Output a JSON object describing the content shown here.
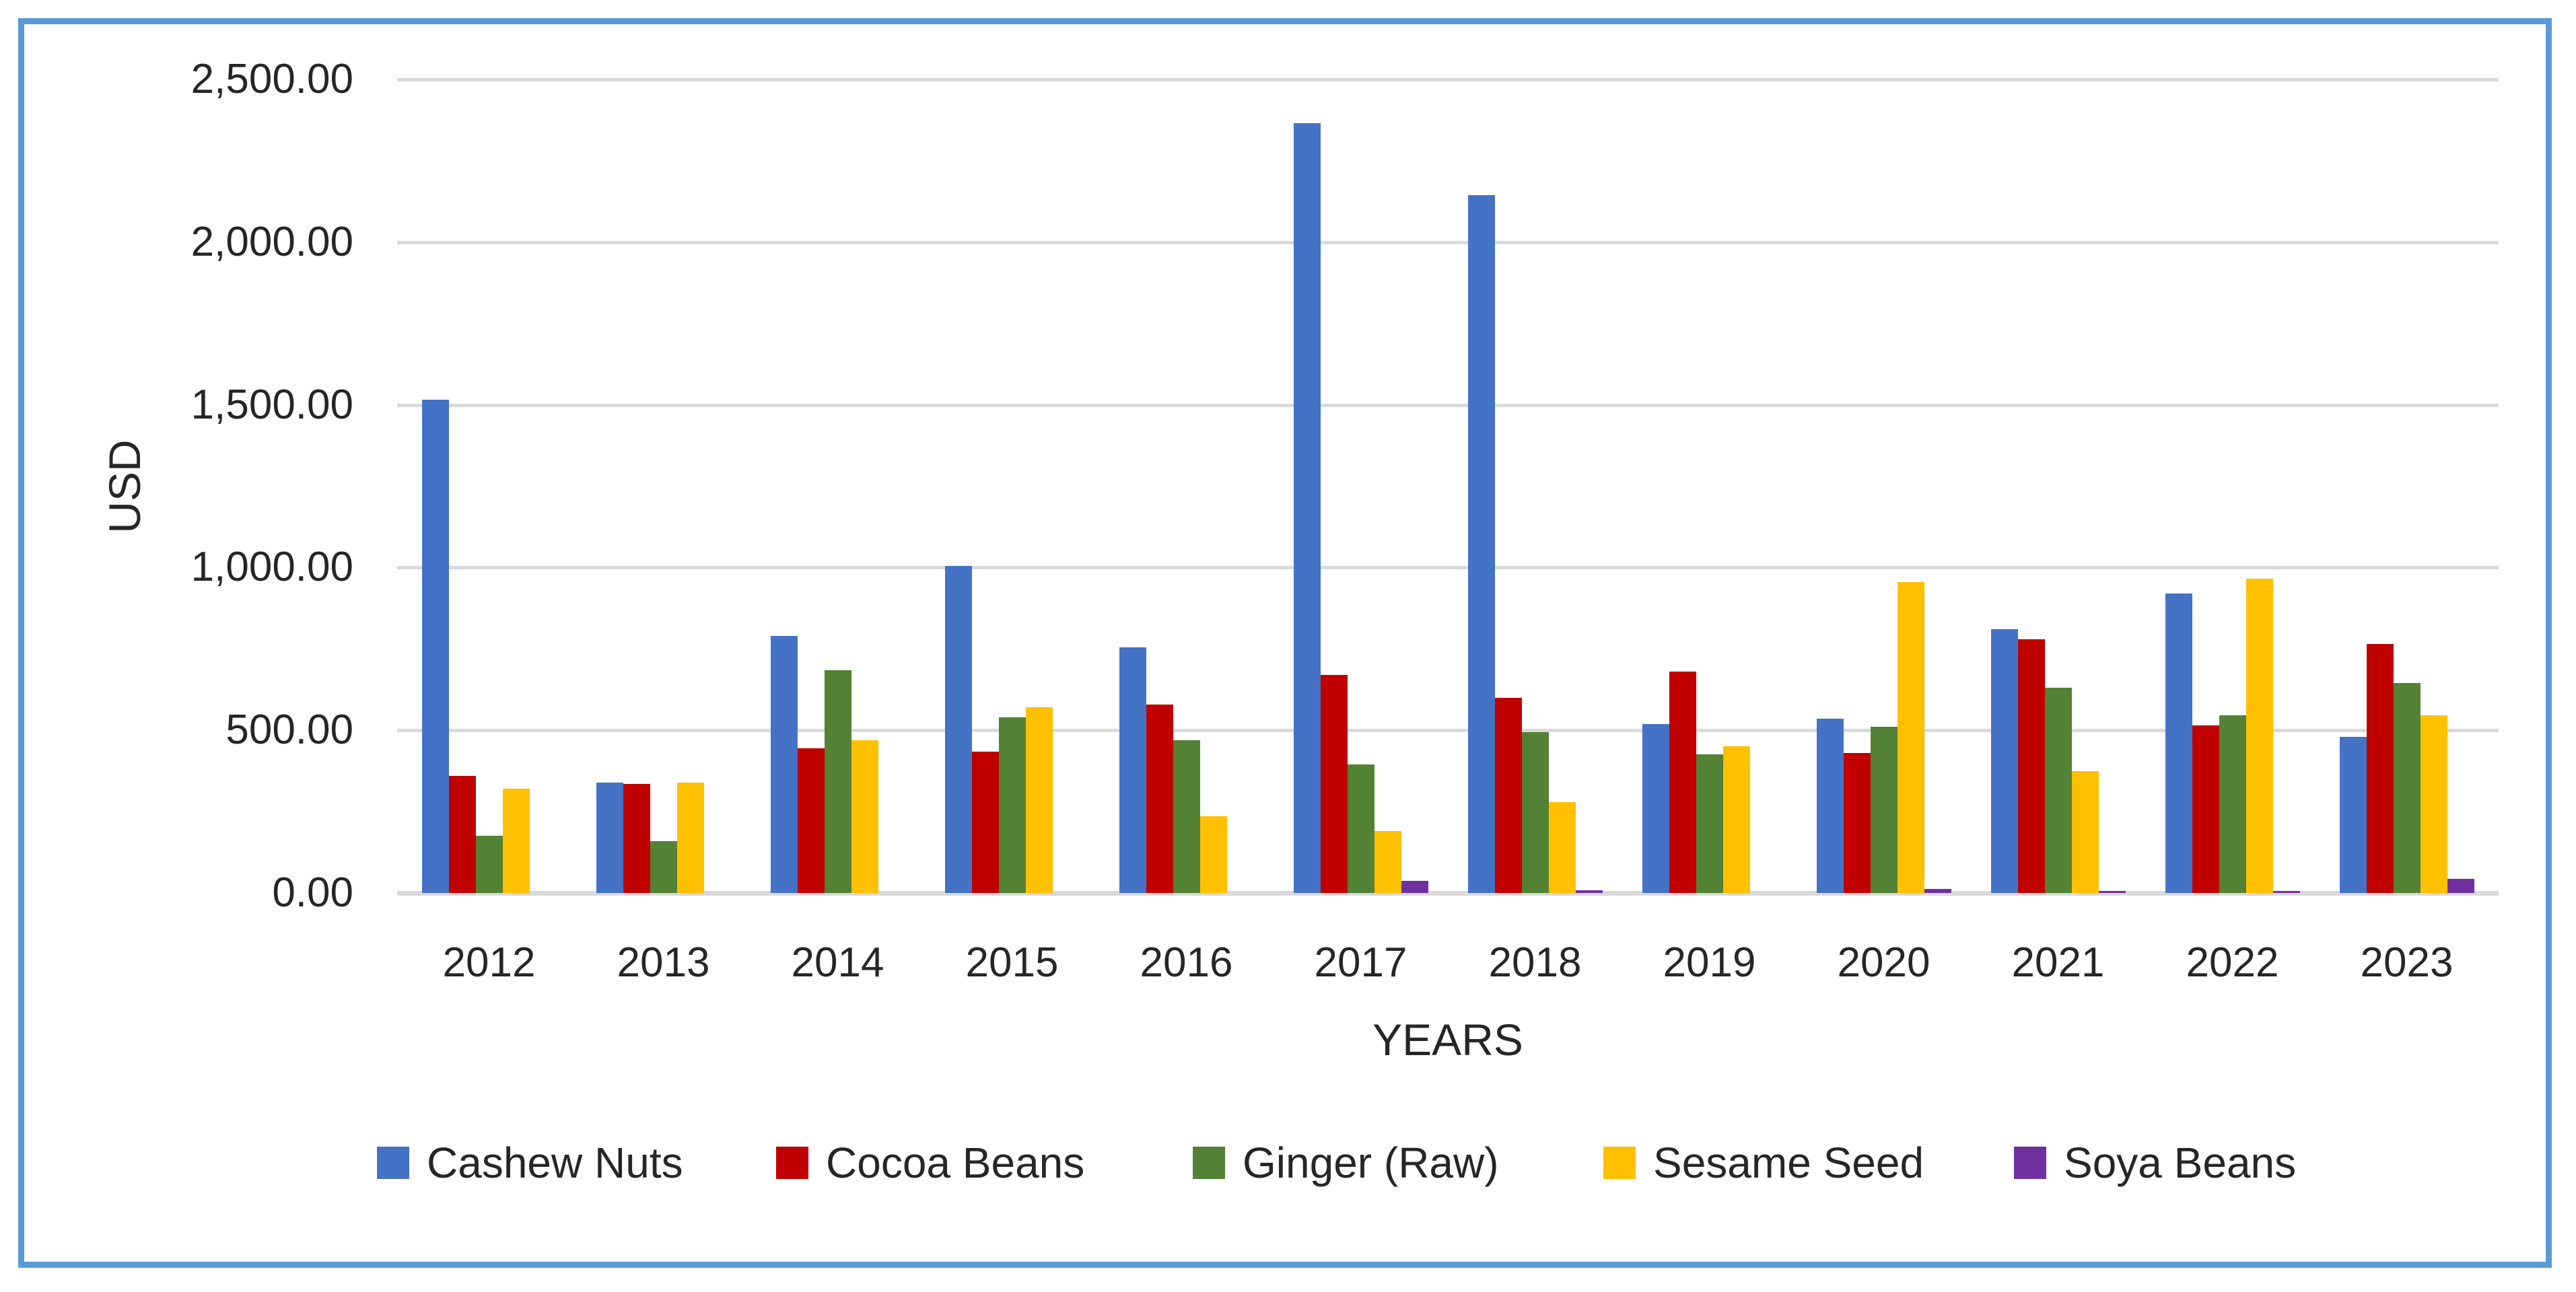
{
  "frame": {
    "border_color": "#5B9BD5",
    "background": "#FFFFFF",
    "gridline_color": "#D9D9D9",
    "text_color": "#262626"
  },
  "chart_data": {
    "type": "bar",
    "title": "",
    "xlabel": "YEARS",
    "ylabel": "USD",
    "categories": [
      "2012",
      "2013",
      "2014",
      "2015",
      "2016",
      "2017",
      "2018",
      "2019",
      "2020",
      "2021",
      "2022",
      "2023"
    ],
    "series": [
      {
        "name": "Cashew Nuts",
        "color": "#4472C4",
        "values": [
          1515,
          340,
          790,
          1005,
          755,
          2365,
          2145,
          520,
          535,
          810,
          920,
          480
        ]
      },
      {
        "name": "Cocoa Beans",
        "color": "#C00000",
        "values": [
          360,
          335,
          445,
          435,
          580,
          670,
          600,
          680,
          430,
          780,
          515,
          765
        ]
      },
      {
        "name": "Ginger (Raw)",
        "color": "#548235",
        "values": [
          175,
          160,
          685,
          540,
          470,
          395,
          495,
          425,
          510,
          630,
          545,
          645
        ]
      },
      {
        "name": "Sesame Seed",
        "color": "#FFC000",
        "values": [
          320,
          340,
          470,
          570,
          235,
          190,
          280,
          450,
          955,
          375,
          965,
          545
        ]
      },
      {
        "name": "Soya Beans",
        "color": "#7030A0",
        "values": [
          0,
          0,
          0,
          0,
          0,
          38,
          8,
          0,
          12,
          6,
          6,
          43
        ]
      }
    ],
    "ylim": [
      0,
      2500
    ],
    "ytick_step": 500,
    "ytick_labels": [
      "0.00",
      "500.00",
      "1,000.00",
      "1,500.00",
      "2,000.00",
      "2,500.00"
    ],
    "grid": "horizontal",
    "legend_position": "bottom"
  }
}
